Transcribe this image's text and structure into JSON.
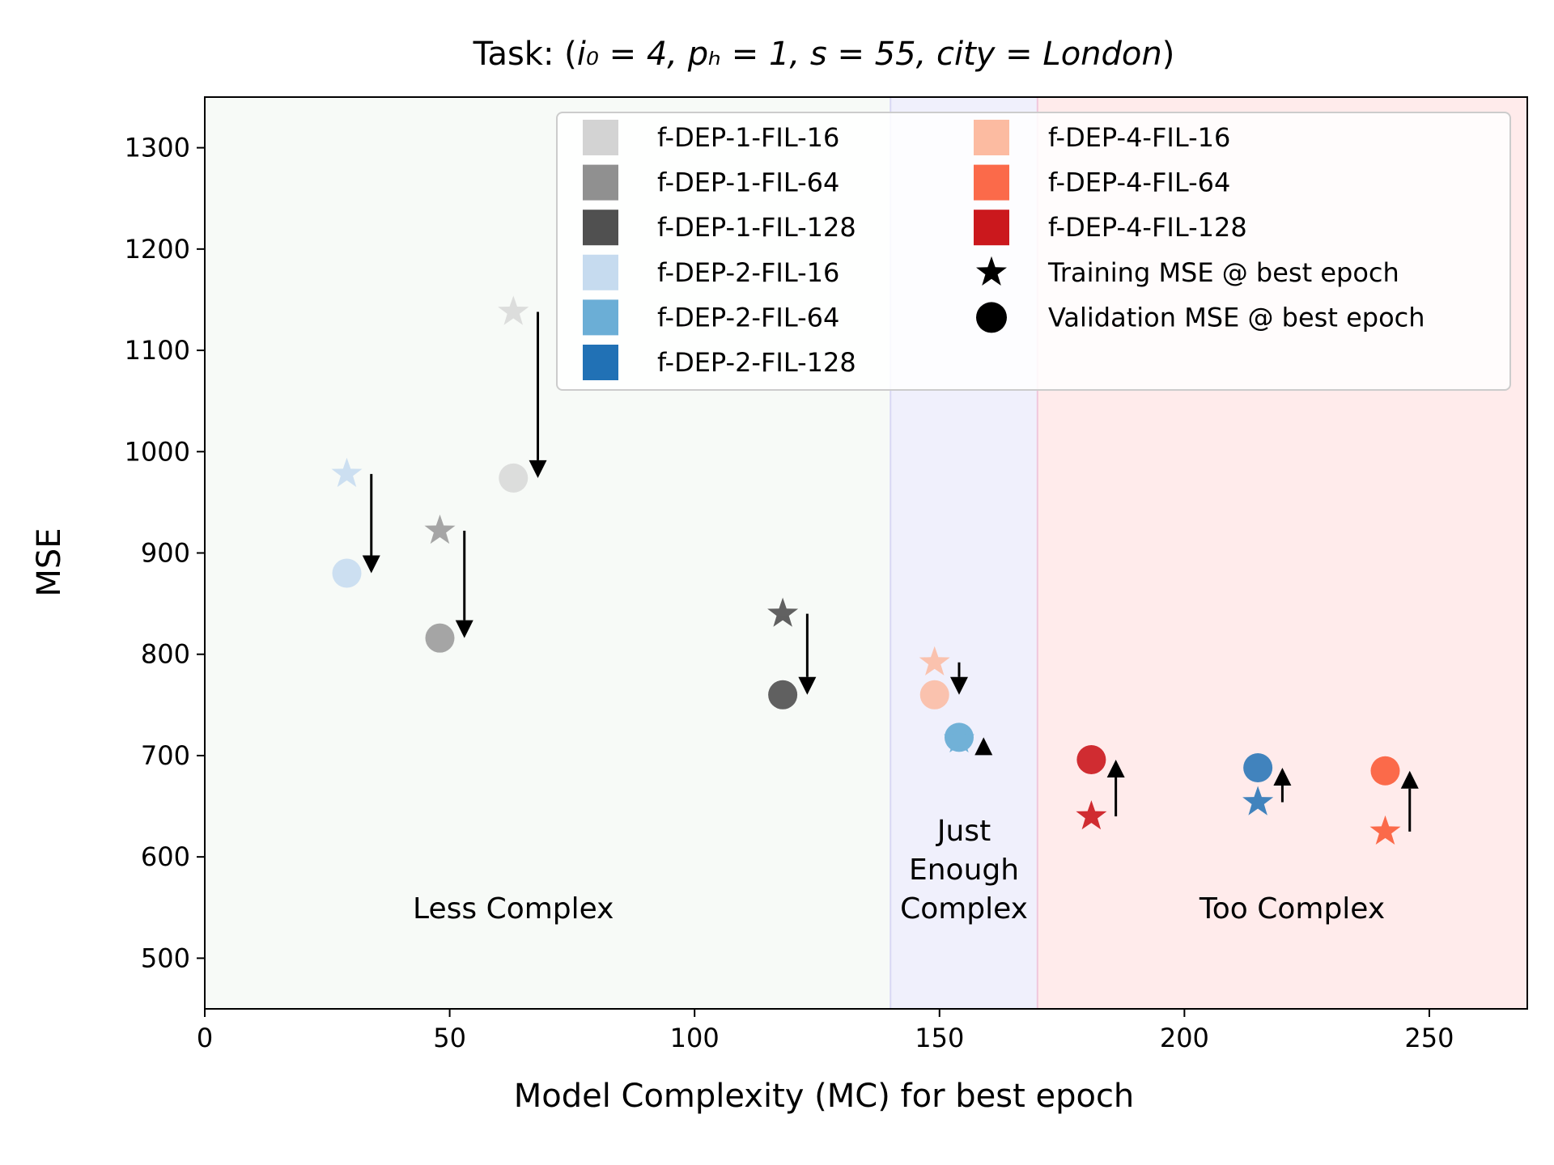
{
  "title": {
    "prefix": "Task: (",
    "math": "i₀ = 4, pₕ = 1, s = 55, city = London",
    "suffix": ")"
  },
  "colors": {
    "region_less": "#f7faf7",
    "region_just": "#f0f0fc",
    "region_too": "#ffebeb",
    "arrow": "#000000",
    "frame": "#000000"
  },
  "chart_data": {
    "type": "scatter",
    "title": "Task: (i₀ = 4, pₕ = 1, s = 55, city = London)",
    "xlabel": "Model Complexity (MC) for best epoch",
    "ylabel": "MSE",
    "xlim": [
      0,
      270
    ],
    "ylim": [
      450,
      1350
    ],
    "x_ticks": [
      0,
      50,
      100,
      150,
      200,
      250
    ],
    "y_ticks": [
      500,
      600,
      700,
      800,
      900,
      1000,
      1100,
      1200,
      1300
    ],
    "grid": false,
    "legend_position": "upper-right",
    "regions": [
      {
        "label": "Less Complex",
        "x_range": [
          0,
          140
        ],
        "label_x": 63,
        "label_y": 550,
        "color": "#f7faf7"
      },
      {
        "label": "Just\nEnough\nComplex",
        "x_range": [
          140,
          170
        ],
        "label_x": 155,
        "label_y": 550,
        "color": "#f0f0fc"
      },
      {
        "label": "Too Complex",
        "x_range": [
          170,
          270
        ],
        "label_x": 222,
        "label_y": 550,
        "color": "#ffebeb"
      }
    ],
    "series": [
      {
        "name": "f-DEP-1-FIL-16",
        "color": "#d3d3d3",
        "mc": 63,
        "train_mse": 1138,
        "val_mse": 974,
        "point_alpha": 0.75
      },
      {
        "name": "f-DEP-1-FIL-64",
        "color": "#909090",
        "mc": 48,
        "train_mse": 922,
        "val_mse": 816,
        "point_alpha": 0.8
      },
      {
        "name": "f-DEP-1-FIL-128",
        "color": "#505050",
        "mc": 118,
        "train_mse": 840,
        "val_mse": 760,
        "point_alpha": 0.9
      },
      {
        "name": "f-DEP-2-FIL-16",
        "color": "#c6dbef",
        "mc": 29,
        "train_mse": 978,
        "val_mse": 880,
        "point_alpha": 0.9
      },
      {
        "name": "f-DEP-2-FIL-64",
        "color": "#6baed6",
        "mc": 154,
        "train_mse": 716,
        "val_mse": 718,
        "point_alpha": 0.95
      },
      {
        "name": "f-DEP-2-FIL-128",
        "color": "#2171b5",
        "mc": 215,
        "train_mse": 654,
        "val_mse": 688,
        "point_alpha": 0.85
      },
      {
        "name": "f-DEP-4-FIL-16",
        "color": "#fcbba1",
        "mc": 149,
        "train_mse": 792,
        "val_mse": 760,
        "point_alpha": 0.85
      },
      {
        "name": "f-DEP-4-FIL-64",
        "color": "#fb6a4a",
        "mc": 241,
        "train_mse": 625,
        "val_mse": 685,
        "point_alpha": 1.0
      },
      {
        "name": "f-DEP-4-FIL-128",
        "color": "#cb181d",
        "mc": 181,
        "train_mse": 640,
        "val_mse": 696,
        "point_alpha": 0.9
      }
    ],
    "marker_legend": [
      {
        "name": "Training MSE @ best epoch",
        "marker": "star"
      },
      {
        "name": "Validation MSE @ best epoch",
        "marker": "circle"
      }
    ],
    "arrows": [
      {
        "x": 34,
        "from": 978,
        "to": 880
      },
      {
        "x": 53,
        "from": 922,
        "to": 816
      },
      {
        "x": 68,
        "from": 1138,
        "to": 974
      },
      {
        "x": 123,
        "from": 840,
        "to": 760
      },
      {
        "x": 154,
        "from": 792,
        "to": 760
      },
      {
        "x": 159,
        "from": 716,
        "to": 718
      },
      {
        "x": 186,
        "from": 640,
        "to": 696
      },
      {
        "x": 220,
        "from": 654,
        "to": 688
      },
      {
        "x": 246,
        "from": 625,
        "to": 685
      }
    ]
  }
}
